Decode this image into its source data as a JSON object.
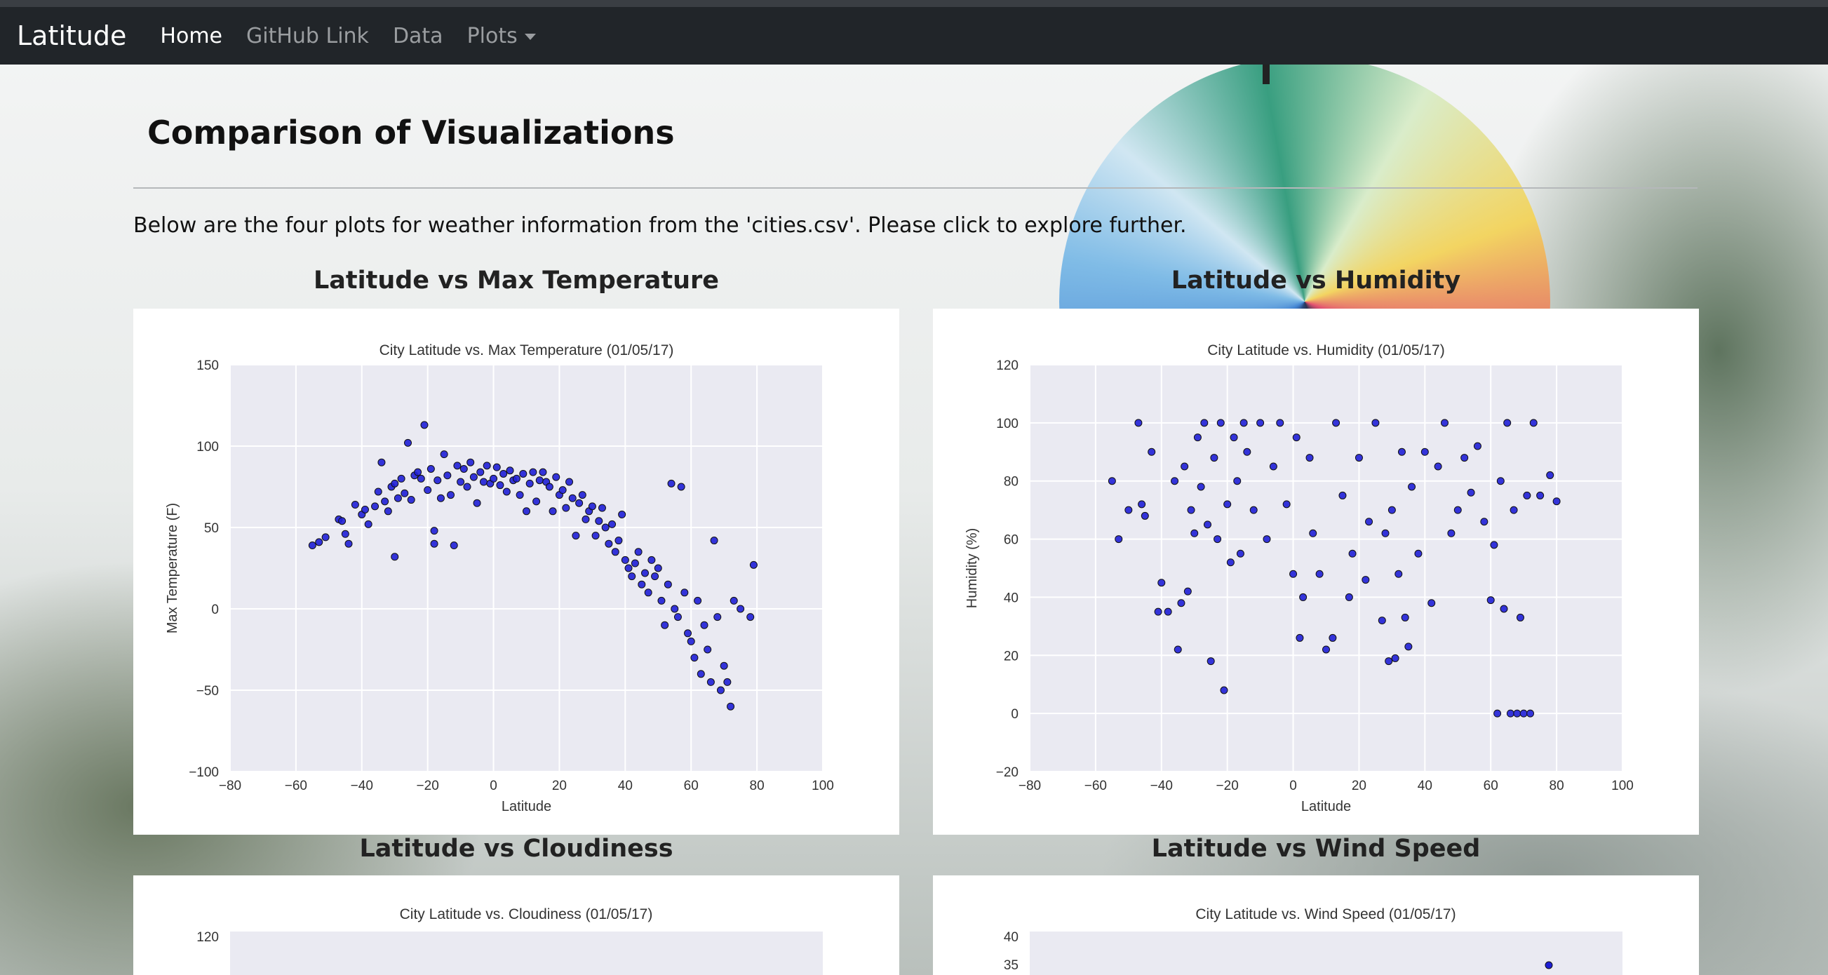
{
  "navbar": {
    "brand": "Latitude",
    "links": [
      {
        "label": "Home",
        "active": true
      },
      {
        "label": "GitHub Link",
        "active": false
      },
      {
        "label": "Data",
        "active": false
      },
      {
        "label": "Plots",
        "active": false
      }
    ]
  },
  "page": {
    "title": "Comparison of Visualizations",
    "intro": "Below are the four plots for weather information from the 'cities.csv'. Please click to explore further."
  },
  "plots": [
    {
      "heading": "Latitude vs Max Temperature"
    },
    {
      "heading": "Latitude vs Humidity"
    },
    {
      "heading": "Latitude vs Cloudiness"
    },
    {
      "heading": "Latitude vs Wind Speed"
    }
  ],
  "chart_data": [
    {
      "type": "scatter",
      "title": "City Latitude vs. Max Temperature (01/05/17)",
      "xlabel": "Latitude",
      "ylabel": "Max Temperature (F)",
      "xlim": [
        -80,
        100
      ],
      "ylim": [
        -100,
        150
      ],
      "xticks": [
        "−80",
        "−60",
        "−40",
        "−20",
        "0",
        "20",
        "40",
        "60",
        "80",
        "100"
      ],
      "yticks": [
        "−100",
        "−50",
        "0",
        "50",
        "100",
        "150"
      ],
      "grid": true,
      "point_color": "#1f1fd6",
      "points": [
        [
          -55,
          39
        ],
        [
          -53,
          41
        ],
        [
          -51,
          44
        ],
        [
          -47,
          55
        ],
        [
          -46,
          54
        ],
        [
          -45,
          46
        ],
        [
          -44,
          40
        ],
        [
          -42,
          64
        ],
        [
          -40,
          58
        ],
        [
          -39,
          61
        ],
        [
          -38,
          52
        ],
        [
          -36,
          63
        ],
        [
          -35,
          72
        ],
        [
          -34,
          90
        ],
        [
          -33,
          66
        ],
        [
          -32,
          60
        ],
        [
          -31,
          75
        ],
        [
          -30,
          77
        ],
        [
          -30,
          32
        ],
        [
          -29,
          68
        ],
        [
          -28,
          80
        ],
        [
          -27,
          71
        ],
        [
          -26,
          102
        ],
        [
          -25,
          67
        ],
        [
          -24,
          82
        ],
        [
          -23,
          84
        ],
        [
          -22,
          80
        ],
        [
          -21,
          113
        ],
        [
          -20,
          73
        ],
        [
          -19,
          86
        ],
        [
          -18,
          48
        ],
        [
          -18,
          40
        ],
        [
          -17,
          79
        ],
        [
          -16,
          68
        ],
        [
          -15,
          95
        ],
        [
          -14,
          82
        ],
        [
          -13,
          70
        ],
        [
          -12,
          39
        ],
        [
          -11,
          88
        ],
        [
          -10,
          78
        ],
        [
          -9,
          86
        ],
        [
          -8,
          75
        ],
        [
          -7,
          90
        ],
        [
          -6,
          81
        ],
        [
          -5,
          65
        ],
        [
          -4,
          84
        ],
        [
          -3,
          78
        ],
        [
          -2,
          88
        ],
        [
          -1,
          77
        ],
        [
          0,
          80
        ],
        [
          1,
          87
        ],
        [
          2,
          76
        ],
        [
          3,
          83
        ],
        [
          4,
          72
        ],
        [
          5,
          85
        ],
        [
          6,
          79
        ],
        [
          7,
          80
        ],
        [
          8,
          70
        ],
        [
          9,
          83
        ],
        [
          10,
          60
        ],
        [
          11,
          77
        ],
        [
          12,
          84
        ],
        [
          13,
          66
        ],
        [
          14,
          79
        ],
        [
          15,
          84
        ],
        [
          16,
          78
        ],
        [
          17,
          75
        ],
        [
          18,
          60
        ],
        [
          19,
          81
        ],
        [
          20,
          70
        ],
        [
          21,
          73
        ],
        [
          22,
          62
        ],
        [
          23,
          78
        ],
        [
          24,
          68
        ],
        [
          25,
          45
        ],
        [
          26,
          65
        ],
        [
          27,
          70
        ],
        [
          28,
          55
        ],
        [
          29,
          60
        ],
        [
          30,
          63
        ],
        [
          31,
          45
        ],
        [
          32,
          54
        ],
        [
          33,
          62
        ],
        [
          34,
          50
        ],
        [
          35,
          40
        ],
        [
          36,
          52
        ],
        [
          37,
          35
        ],
        [
          38,
          42
        ],
        [
          39,
          58
        ],
        [
          40,
          30
        ],
        [
          41,
          25
        ],
        [
          42,
          20
        ],
        [
          43,
          28
        ],
        [
          44,
          35
        ],
        [
          45,
          15
        ],
        [
          46,
          22
        ],
        [
          47,
          10
        ],
        [
          48,
          30
        ],
        [
          49,
          20
        ],
        [
          50,
          25
        ],
        [
          51,
          5
        ],
        [
          52,
          -10
        ],
        [
          53,
          15
        ],
        [
          54,
          77
        ],
        [
          55,
          0
        ],
        [
          56,
          -5
        ],
        [
          57,
          75
        ],
        [
          58,
          10
        ],
        [
          59,
          -15
        ],
        [
          60,
          -20
        ],
        [
          61,
          -30
        ],
        [
          62,
          5
        ],
        [
          63,
          -40
        ],
        [
          64,
          -10
        ],
        [
          65,
          -25
        ],
        [
          66,
          -45
        ],
        [
          67,
          42
        ],
        [
          68,
          -5
        ],
        [
          69,
          -50
        ],
        [
          70,
          -35
        ],
        [
          71,
          -45
        ],
        [
          72,
          -60
        ],
        [
          73,
          5
        ],
        [
          75,
          0
        ],
        [
          78,
          -5
        ],
        [
          79,
          27
        ]
      ]
    },
    {
      "type": "scatter",
      "title": "City Latitude vs. Humidity (01/05/17)",
      "xlabel": "Latitude",
      "ylabel": "Humidity (%)",
      "xlim": [
        -80,
        100
      ],
      "ylim": [
        -20,
        120
      ],
      "xticks": [
        "−80",
        "−60",
        "−40",
        "−20",
        "0",
        "20",
        "40",
        "60",
        "80",
        "100"
      ],
      "yticks": [
        "−20",
        "0",
        "20",
        "40",
        "60",
        "80",
        "100",
        "120"
      ],
      "grid": true,
      "point_color": "#1f1fd6",
      "points": [
        [
          -55,
          80
        ],
        [
          -53,
          60
        ],
        [
          -50,
          70
        ],
        [
          -47,
          100
        ],
        [
          -46,
          72
        ],
        [
          -45,
          68
        ],
        [
          -43,
          90
        ],
        [
          -41,
          35
        ],
        [
          -40,
          45
        ],
        [
          -38,
          35
        ],
        [
          -36,
          80
        ],
        [
          -35,
          22
        ],
        [
          -34,
          38
        ],
        [
          -33,
          85
        ],
        [
          -32,
          42
        ],
        [
          -31,
          70
        ],
        [
          -30,
          62
        ],
        [
          -29,
          95
        ],
        [
          -28,
          78
        ],
        [
          -27,
          100
        ],
        [
          -26,
          65
        ],
        [
          -25,
          18
        ],
        [
          -24,
          88
        ],
        [
          -23,
          60
        ],
        [
          -22,
          100
        ],
        [
          -21,
          8
        ],
        [
          -20,
          72
        ],
        [
          -19,
          52
        ],
        [
          -18,
          95
        ],
        [
          -17,
          80
        ],
        [
          -16,
          55
        ],
        [
          -15,
          100
        ],
        [
          -14,
          90
        ],
        [
          -12,
          70
        ],
        [
          -10,
          100
        ],
        [
          -8,
          60
        ],
        [
          -6,
          85
        ],
        [
          -4,
          100
        ],
        [
          -2,
          72
        ],
        [
          0,
          48
        ],
        [
          1,
          95
        ],
        [
          2,
          26
        ],
        [
          3,
          40
        ],
        [
          5,
          88
        ],
        [
          6,
          62
        ],
        [
          8,
          48
        ],
        [
          10,
          22
        ],
        [
          12,
          26
        ],
        [
          13,
          100
        ],
        [
          15,
          75
        ],
        [
          17,
          40
        ],
        [
          18,
          55
        ],
        [
          20,
          88
        ],
        [
          22,
          46
        ],
        [
          23,
          66
        ],
        [
          25,
          100
        ],
        [
          27,
          32
        ],
        [
          28,
          62
        ],
        [
          29,
          18
        ],
        [
          30,
          70
        ],
        [
          31,
          19
        ],
        [
          32,
          48
        ],
        [
          33,
          90
        ],
        [
          34,
          33
        ],
        [
          35,
          23
        ],
        [
          36,
          78
        ],
        [
          38,
          55
        ],
        [
          40,
          90
        ],
        [
          42,
          38
        ],
        [
          44,
          85
        ],
        [
          46,
          100
        ],
        [
          48,
          62
        ],
        [
          50,
          70
        ],
        [
          52,
          88
        ],
        [
          54,
          76
        ],
        [
          56,
          92
        ],
        [
          58,
          66
        ],
        [
          60,
          39
        ],
        [
          61,
          58
        ],
        [
          62,
          0
        ],
        [
          63,
          80
        ],
        [
          64,
          36
        ],
        [
          65,
          100
        ],
        [
          66,
          0
        ],
        [
          67,
          70
        ],
        [
          68,
          0
        ],
        [
          69,
          33
        ],
        [
          70,
          0
        ],
        [
          71,
          75
        ],
        [
          72,
          0
        ],
        [
          73,
          100
        ],
        [
          75,
          75
        ],
        [
          78,
          82
        ],
        [
          80,
          73
        ]
      ]
    }
  ]
}
